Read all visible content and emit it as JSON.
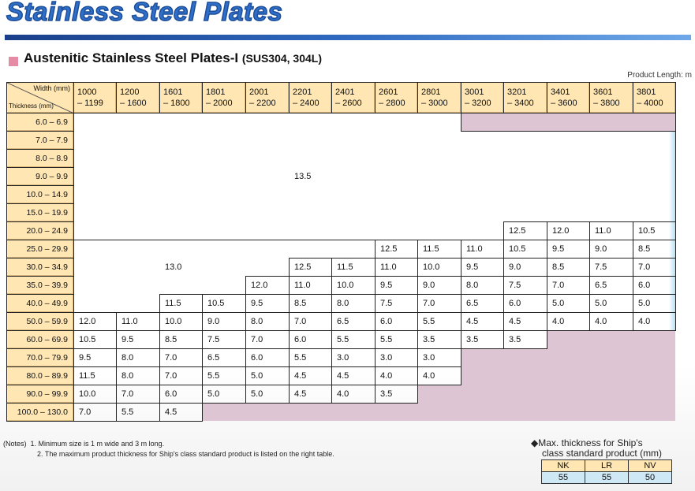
{
  "header": {
    "page_title": "Stainless Steel Plates",
    "section_title": "Austenitic Stainless Steel Plates-I",
    "section_sub": "(SUS304, 304L)",
    "unit_label": "Product Length: m"
  },
  "table": {
    "corner_width": "Width (mm)",
    "corner_thickness": "Thickness (mm)",
    "width_headers": [
      [
        "1000",
        "– 1199"
      ],
      [
        "1200",
        "– 1600"
      ],
      [
        "1601",
        "– 1800"
      ],
      [
        "1801",
        "– 2000"
      ],
      [
        "2001",
        "– 2200"
      ],
      [
        "2201",
        "– 2400"
      ],
      [
        "2401",
        "– 2600"
      ],
      [
        "2601",
        "– 2800"
      ],
      [
        "2801",
        "– 3000"
      ],
      [
        "3001",
        "– 3200"
      ],
      [
        "3201",
        "– 3400"
      ],
      [
        "3401",
        "– 3600"
      ],
      [
        "3601",
        "– 3800"
      ],
      [
        "3801",
        "– 4000"
      ]
    ],
    "thickness_rows": [
      "6.0 – 6.9",
      "7.0 – 7.9",
      "8.0 – 8.9",
      "9.0 – 9.9",
      "10.0 – 14.9",
      "15.0 – 19.9",
      "20.0 – 24.9",
      "25.0 – 29.9",
      "30.0 – 34.9",
      "35.0 – 39.9",
      "40.0 – 49.9",
      "50.0 – 59.9",
      "60.0 – 69.9",
      "70.0 – 79.9",
      "80.0 – 89.9",
      "90.0 – 99.9",
      "100.0 – 130.0"
    ],
    "merged_a": "13.5",
    "merged_b": "13.0",
    "r6": [
      "12.5",
      "12.0",
      "11.0",
      "10.5"
    ],
    "r7": [
      "12.5",
      "11.5",
      "11.0",
      "10.5",
      "9.5",
      "9.0",
      "8.5"
    ],
    "r8": [
      "12.5",
      "11.5",
      "11.0",
      "10.0",
      "9.5",
      "9.0",
      "8.5",
      "7.5",
      "7.0"
    ],
    "r9": [
      "12.0",
      "11.0",
      "10.0",
      "9.5",
      "9.0",
      "8.0",
      "7.5",
      "7.0",
      "6.5",
      "6.0"
    ],
    "r10": [
      "11.5",
      "10.5",
      "9.5",
      "8.5",
      "8.0",
      "7.5",
      "7.0",
      "6.5",
      "6.0",
      "5.0",
      "5.0",
      "5.0"
    ],
    "r11": [
      "12.0",
      "11.0",
      "10.0",
      "9.0",
      "8.0",
      "7.0",
      "6.5",
      "6.0",
      "5.5",
      "4.5",
      "4.5",
      "4.0",
      "4.0",
      "4.0"
    ],
    "r12": [
      "10.5",
      "9.5",
      "8.5",
      "7.5",
      "7.0",
      "6.0",
      "5.5",
      "5.5",
      "3.5",
      "3.5",
      "3.5"
    ],
    "r13": [
      "9.5",
      "8.0",
      "7.0",
      "6.5",
      "6.0",
      "5.5",
      "3.0",
      "3.0",
      "3.0"
    ],
    "r14": [
      "11.5",
      "8.0",
      "7.0",
      "5.5",
      "5.0",
      "4.5",
      "4.5",
      "4.0",
      "4.0"
    ],
    "r15": [
      "10.0",
      "7.0",
      "6.0",
      "5.0",
      "5.0",
      "4.5",
      "4.0",
      "3.5"
    ],
    "r16": [
      "7.0",
      "5.5",
      "4.5"
    ]
  },
  "notes": {
    "label": "(Notes)",
    "note1": "1. Minimum size is 1 m wide and 3 m long.",
    "note2": "2. The maximum product thickness for Ship's class standard product is listed on the right table."
  },
  "ship": {
    "title_line1": "◆Max. thickness for Ship's",
    "title_line2": "class standard product (mm)",
    "headers": [
      "NK",
      "LR",
      "NV"
    ],
    "values": [
      "55",
      "55",
      "50"
    ]
  },
  "colors": {
    "title_blue": "#2f6fc8",
    "header_fill": "#ffe6b3",
    "unavailable_fill": "#ddc5d3",
    "marker_pink": "#e58ba6",
    "ship_value_fill": "#cfe8f6"
  }
}
